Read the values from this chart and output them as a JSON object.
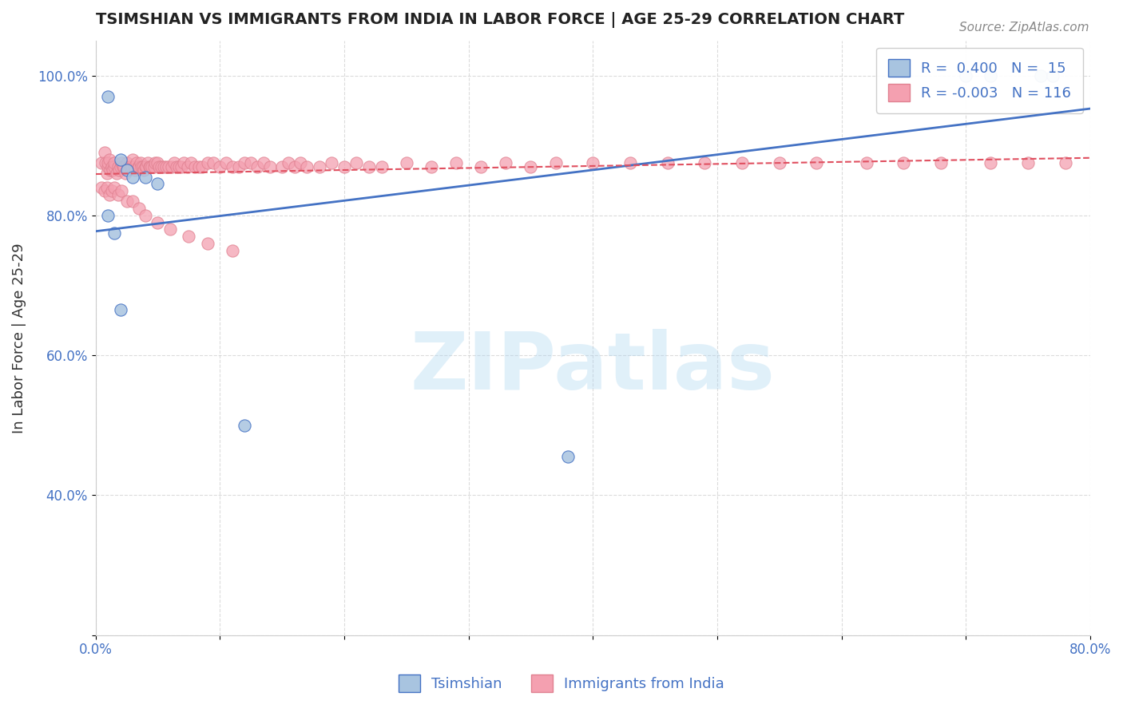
{
  "title": "TSIMSHIAN VS IMMIGRANTS FROM INDIA IN LABOR FORCE | AGE 25-29 CORRELATION CHART",
  "source": "Source: ZipAtlas.com",
  "xlabel": "",
  "ylabel": "In Labor Force | Age 25-29",
  "xlim": [
    0.0,
    0.8
  ],
  "ylim": [
    0.2,
    1.05
  ],
  "xtick_labels": [
    "0.0%",
    "",
    "",
    "",
    "",
    "",
    "",
    "",
    "80.0%"
  ],
  "ytick_labels": [
    "",
    "80.0%",
    "",
    "60.0%",
    "",
    "40.0%",
    ""
  ],
  "watermark": "ZIPatlas",
  "legend_r1": "R =  0.400",
  "legend_n1": "N =  15",
  "legend_r2": "R = -0.003",
  "legend_n2": "N = 116",
  "blue_color": "#a8c4e0",
  "pink_color": "#f4a0b0",
  "line_blue": "#4472c4",
  "line_pink": "#e05060",
  "grid_color": "#cccccc",
  "tsimshian_x": [
    0.01,
    0.02,
    0.025,
    0.03,
    0.04,
    0.05,
    0.01,
    0.015,
    0.02,
    0.12,
    0.38,
    0.7,
    0.72,
    0.76,
    0.77
  ],
  "tsimshian_y": [
    0.97,
    0.88,
    0.865,
    0.855,
    0.855,
    0.845,
    0.8,
    0.775,
    0.665,
    0.5,
    0.455,
    1.0,
    1.0,
    1.0,
    1.0
  ],
  "india_x": [
    0.005,
    0.007,
    0.008,
    0.009,
    0.01,
    0.01,
    0.011,
    0.012,
    0.013,
    0.014,
    0.015,
    0.015,
    0.017,
    0.018,
    0.019,
    0.02,
    0.021,
    0.022,
    0.023,
    0.024,
    0.025,
    0.026,
    0.028,
    0.029,
    0.03,
    0.031,
    0.032,
    0.033,
    0.034,
    0.035,
    0.036,
    0.037,
    0.038,
    0.039,
    0.04,
    0.041,
    0.042,
    0.043,
    0.044,
    0.045,
    0.047,
    0.048,
    0.05,
    0.051,
    0.053,
    0.055,
    0.057,
    0.059,
    0.061,
    0.063,
    0.065,
    0.067,
    0.069,
    0.071,
    0.074,
    0.077,
    0.08,
    0.083,
    0.086,
    0.09,
    0.095,
    0.1,
    0.105,
    0.11,
    0.115,
    0.12,
    0.125,
    0.13,
    0.135,
    0.14,
    0.15,
    0.155,
    0.16,
    0.165,
    0.17,
    0.18,
    0.19,
    0.2,
    0.21,
    0.22,
    0.23,
    0.25,
    0.27,
    0.29,
    0.31,
    0.33,
    0.35,
    0.37,
    0.4,
    0.43,
    0.46,
    0.49,
    0.52,
    0.55,
    0.58,
    0.62,
    0.65,
    0.68,
    0.72,
    0.75,
    0.78,
    0.005,
    0.007,
    0.009,
    0.011,
    0.013,
    0.015,
    0.018,
    0.021,
    0.025,
    0.03,
    0.035,
    0.04,
    0.05,
    0.06,
    0.075,
    0.09,
    0.11
  ],
  "india_y": [
    0.875,
    0.89,
    0.875,
    0.86,
    0.87,
    0.875,
    0.88,
    0.865,
    0.87,
    0.865,
    0.87,
    0.875,
    0.86,
    0.87,
    0.865,
    0.87,
    0.875,
    0.87,
    0.87,
    0.86,
    0.875,
    0.87,
    0.87,
    0.87,
    0.88,
    0.87,
    0.865,
    0.875,
    0.87,
    0.87,
    0.875,
    0.87,
    0.87,
    0.865,
    0.87,
    0.87,
    0.875,
    0.87,
    0.87,
    0.87,
    0.87,
    0.875,
    0.875,
    0.87,
    0.87,
    0.87,
    0.87,
    0.87,
    0.87,
    0.875,
    0.87,
    0.87,
    0.87,
    0.875,
    0.87,
    0.875,
    0.87,
    0.87,
    0.87,
    0.875,
    0.875,
    0.87,
    0.875,
    0.87,
    0.87,
    0.875,
    0.875,
    0.87,
    0.875,
    0.87,
    0.87,
    0.875,
    0.87,
    0.875,
    0.87,
    0.87,
    0.875,
    0.87,
    0.875,
    0.87,
    0.87,
    0.875,
    0.87,
    0.875,
    0.87,
    0.875,
    0.87,
    0.875,
    0.875,
    0.875,
    0.875,
    0.875,
    0.875,
    0.875,
    0.875,
    0.875,
    0.875,
    0.875,
    0.875,
    0.875,
    0.875,
    0.84,
    0.835,
    0.84,
    0.83,
    0.835,
    0.84,
    0.83,
    0.835,
    0.82,
    0.82,
    0.81,
    0.8,
    0.79,
    0.78,
    0.77,
    0.76,
    0.75
  ]
}
